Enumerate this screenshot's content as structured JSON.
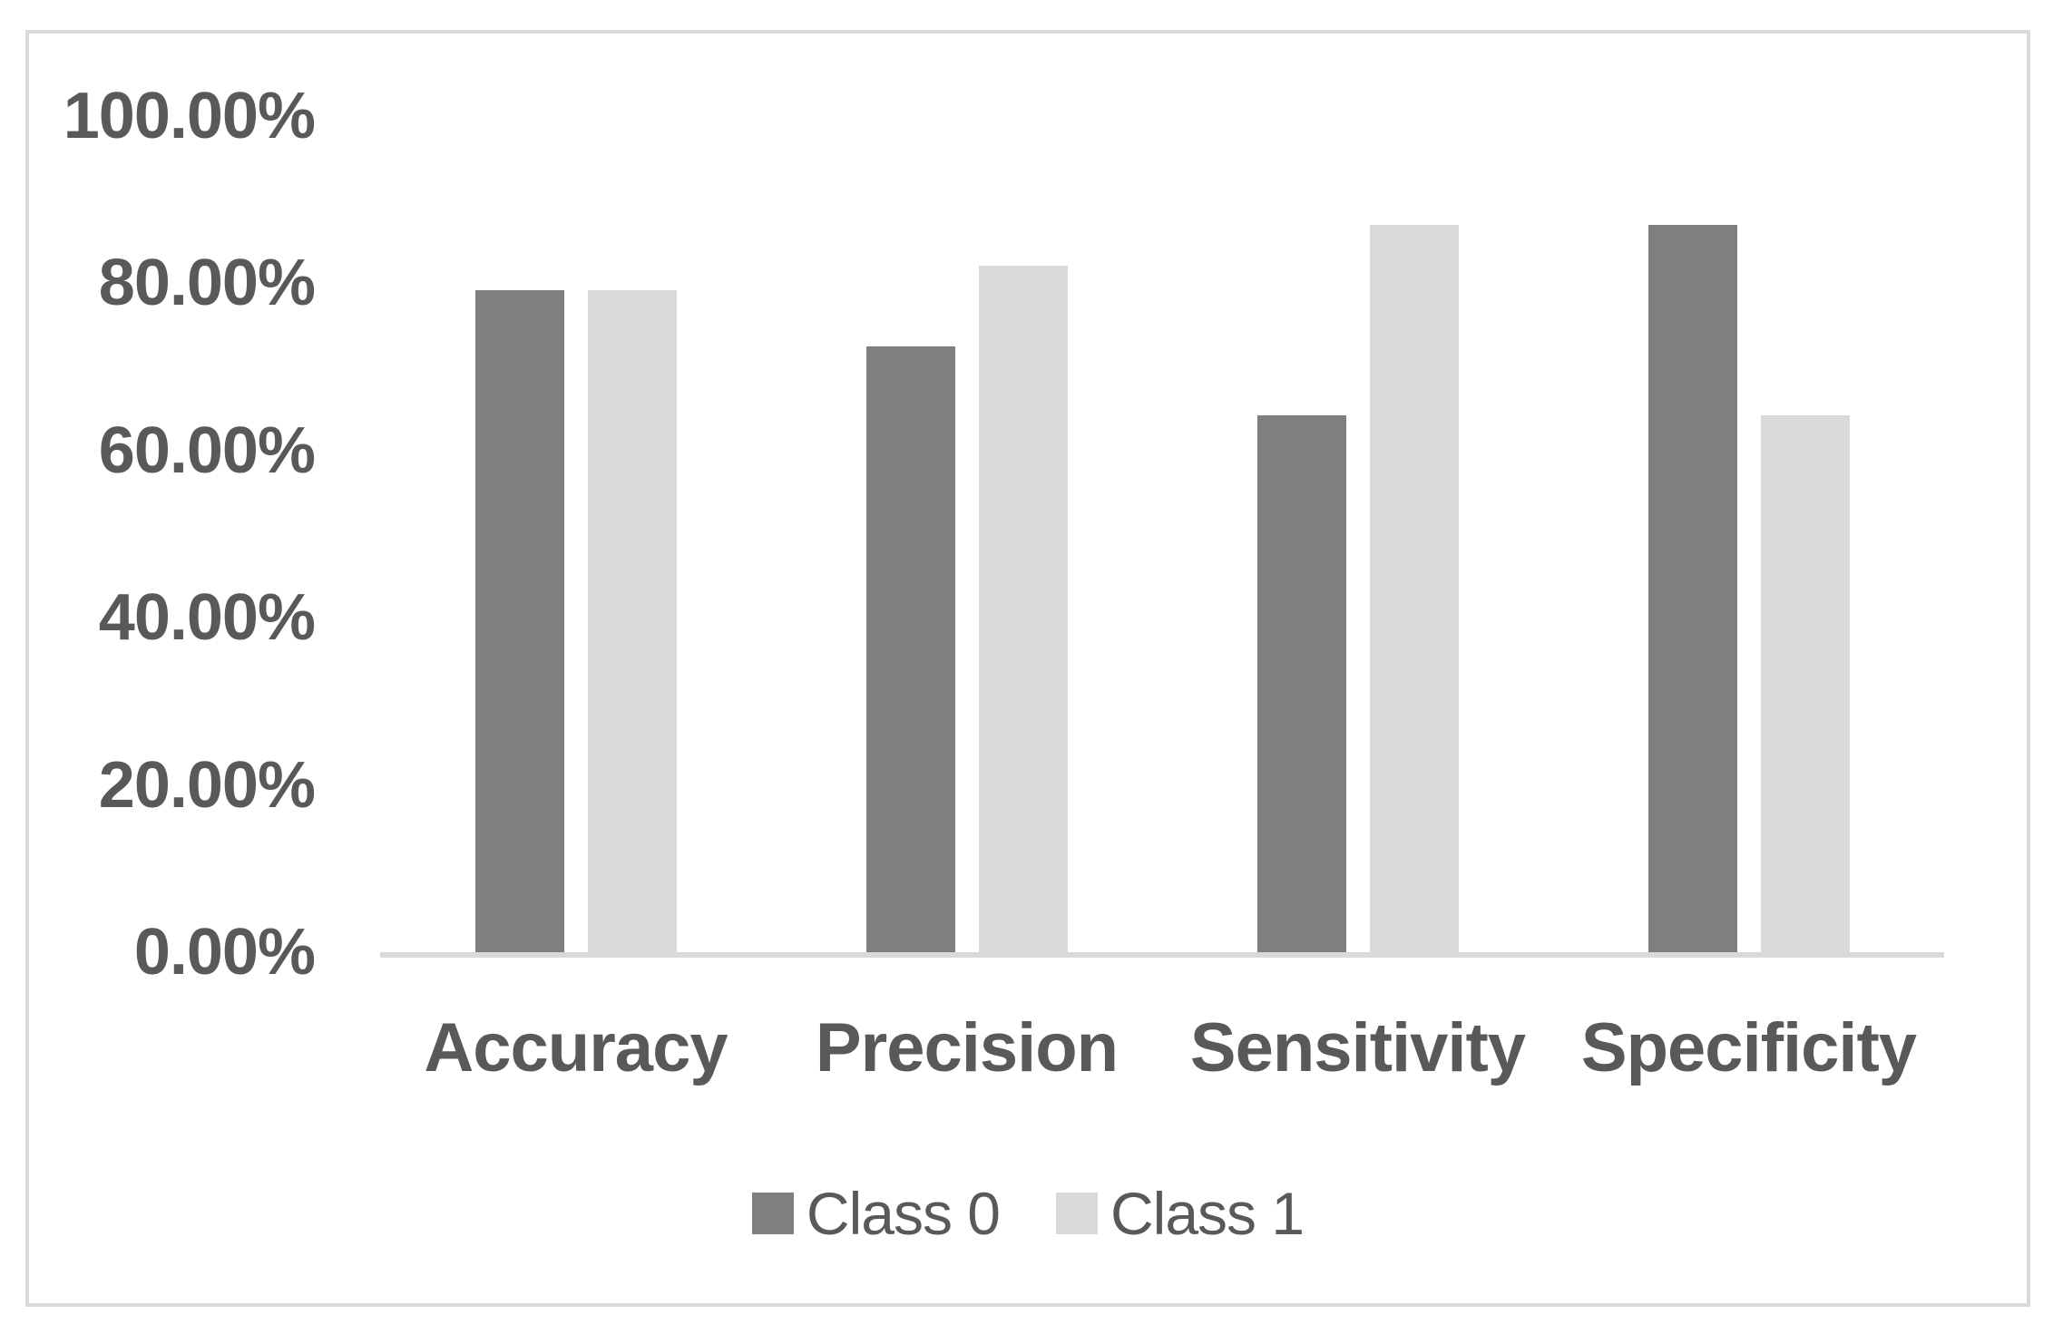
{
  "chart_data": {
    "type": "bar",
    "title": "",
    "categories": [
      "Accuracy",
      "Precision",
      "Sensitivity",
      "Specificity"
    ],
    "series": [
      {
        "name": "Class 0",
        "color": "#7f7f7f",
        "values": [
          79.2,
          72.5,
          64.2,
          87.0
        ]
      },
      {
        "name": "Class 1",
        "color": "#d9d9d9",
        "values": [
          79.2,
          82.1,
          87.0,
          64.2
        ]
      }
    ],
    "y_axis": {
      "tick_labels": [
        "100.00%",
        "80.00%",
        "60.00%",
        "40.00%",
        "20.00%",
        "0.00%"
      ],
      "min": 0,
      "max": 100,
      "step": 20,
      "unit": "%",
      "gridlines": false
    },
    "x_axis": {
      "label": ""
    },
    "legend": {
      "position": "bottom",
      "entries": [
        "Class 0",
        "Class 1"
      ]
    }
  },
  "colors": {
    "text": "#595959",
    "axis_line": "#d9d9d9",
    "chart_border": "#d9d9d9",
    "background": "#ffffff"
  }
}
